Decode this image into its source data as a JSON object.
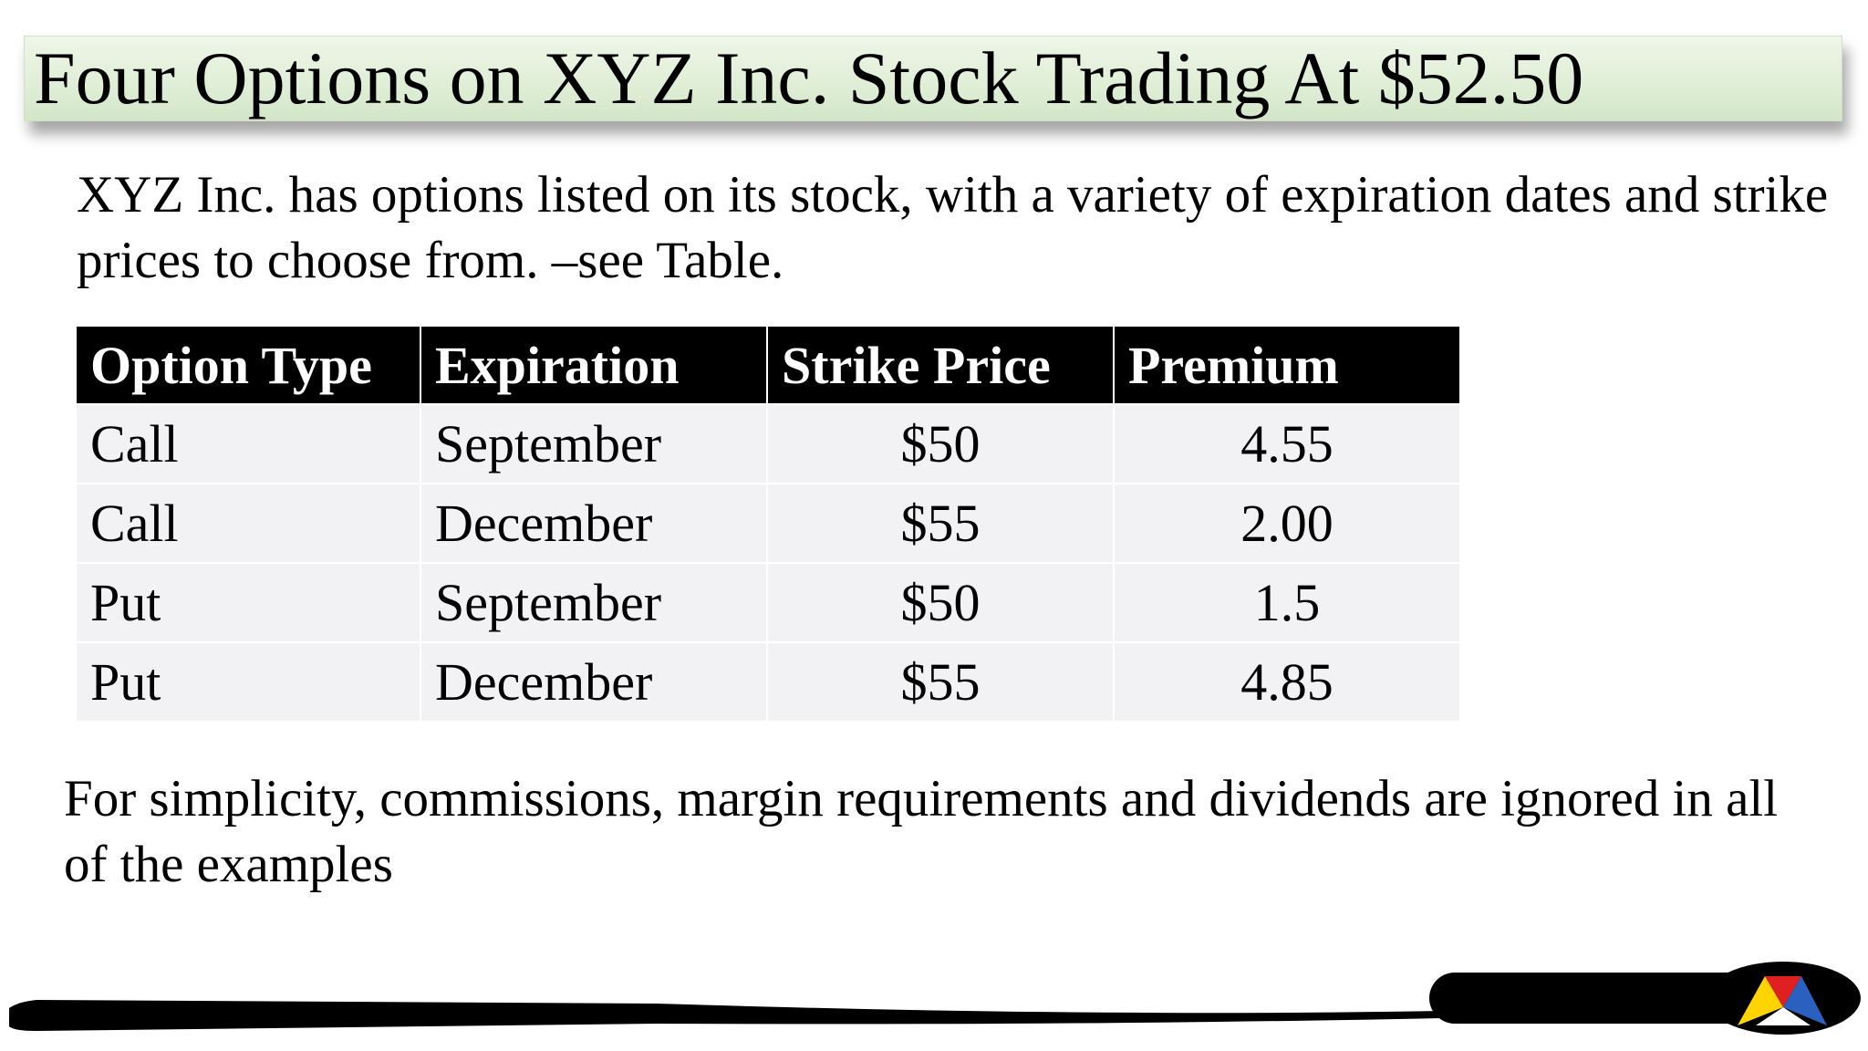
{
  "header": {
    "title": "Four Options on XYZ Inc. Stock Trading At $52.50"
  },
  "intro": "XYZ Inc. has options listed on its stock, with a variety of expiration dates and strike prices to choose from. –see Table.",
  "table": {
    "columns": [
      "Option Type",
      "Expiration",
      "Strike Price",
      "Premium"
    ],
    "rows": [
      [
        "Call",
        "September",
        "$50",
        "4.55"
      ],
      [
        "Call",
        "December",
        "$55",
        "2.00"
      ],
      [
        "Put",
        "September",
        "$50",
        "1.5"
      ],
      [
        "Put",
        "December",
        "$55",
        "4.85"
      ]
    ]
  },
  "note": "For simplicity, commissions, margin requirements and dividends are ignored in all of the examples"
}
